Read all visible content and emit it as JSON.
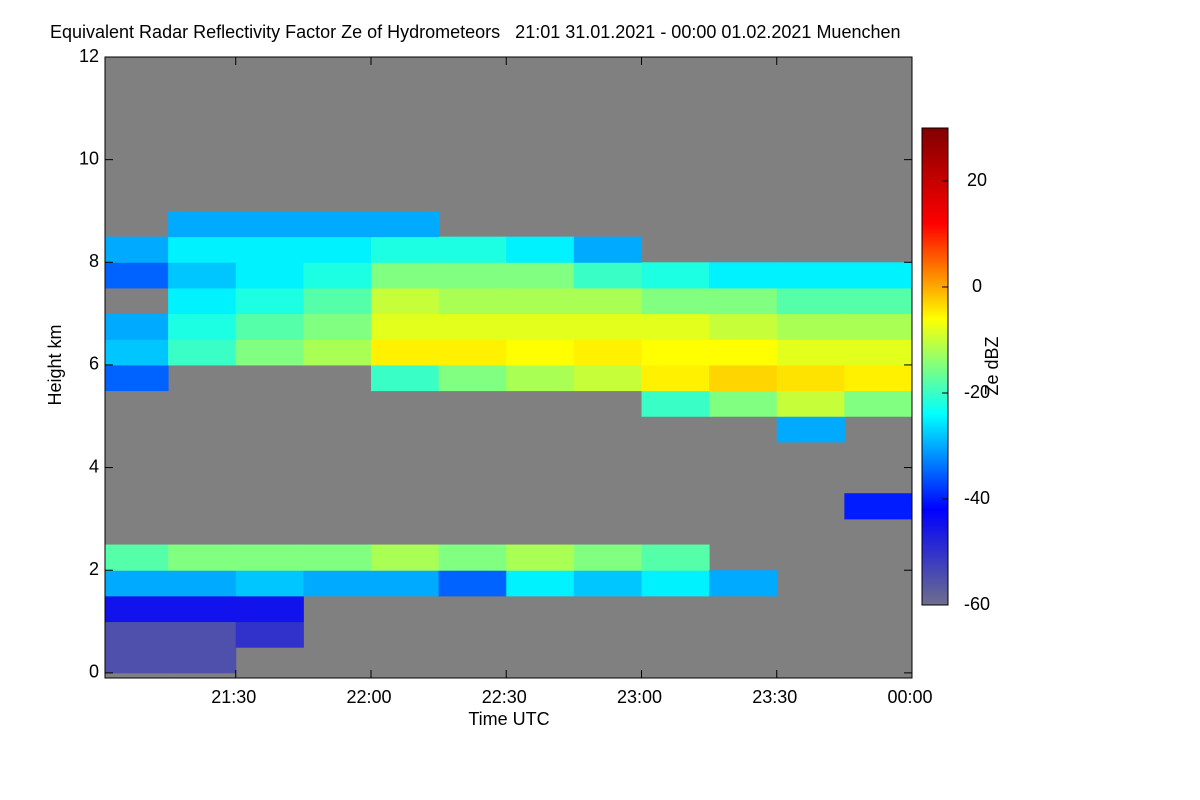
{
  "chart_data": {
    "type": "heatmap",
    "title": "Equivalent Radar Reflectivity Factor Ze of Hydrometeors   21:01 31.01.2021 - 00:00 01.02.2021 Muenchen",
    "x_label": "Time UTC",
    "y_label": "Height km",
    "colorbar_label": "Ze dBZ",
    "xlim": [
      21.0167,
      24
    ],
    "xticks": [
      {
        "value": 21.5,
        "label": "21:30"
      },
      {
        "value": 22,
        "label": "22:00"
      },
      {
        "value": 22.5,
        "label": "22:30"
      },
      {
        "value": 23,
        "label": "23:00"
      },
      {
        "value": 23.5,
        "label": "23:30"
      },
      {
        "value": 24,
        "label": "00:00"
      }
    ],
    "ylim": [
      -0.1,
      12
    ],
    "yticks": [
      0,
      2,
      4,
      6,
      8,
      10,
      12
    ],
    "zlim": [
      -60,
      30
    ],
    "zticks": [
      -60,
      -40,
      -20,
      0,
      20
    ],
    "colormap": [
      "#6e6e8c",
      "#0000ff",
      "#00ffff",
      "#ffff00",
      "#ff0000",
      "#800000"
    ],
    "nodata_color": "#808080",
    "x_bins": [
      21.0167,
      21.25,
      21.5,
      21.75,
      22,
      22.25,
      22.5,
      22.75,
      23,
      23.25,
      23.5,
      23.75,
      24
    ],
    "y_bins": [
      0,
      0.5,
      1,
      1.5,
      2,
      2.5,
      3,
      3.5,
      4,
      4.5,
      5,
      5.5,
      6,
      6.5,
      7,
      7.5,
      8,
      8.5,
      9,
      9.5,
      10,
      10.5,
      11,
      11.5,
      12
    ],
    "z": [
      [
        -55,
        -55,
        -45,
        -30,
        -18,
        null,
        null,
        null,
        null,
        null,
        null,
        -35,
        -28,
        -30,
        null,
        -35,
        -30,
        null,
        null,
        null,
        null,
        null,
        null,
        null
      ],
      [
        -55,
        -55,
        -45,
        -30,
        -15,
        null,
        null,
        null,
        null,
        null,
        null,
        null,
        -20,
        -22,
        -25,
        -28,
        -25,
        -30,
        null,
        null,
        null,
        null,
        null,
        null
      ],
      [
        null,
        -50,
        -45,
        -28,
        -15,
        null,
        null,
        null,
        null,
        null,
        null,
        null,
        -15,
        -18,
        -22,
        -25,
        -25,
        -30,
        null,
        null,
        null,
        null,
        null,
        null
      ],
      [
        null,
        null,
        null,
        -30,
        -15,
        null,
        null,
        null,
        null,
        null,
        null,
        null,
        -12,
        -15,
        -18,
        -22,
        -25,
        -30,
        null,
        null,
        null,
        null,
        null,
        null
      ],
      [
        null,
        null,
        null,
        -30,
        -12,
        null,
        null,
        null,
        null,
        null,
        null,
        -20,
        -5,
        -8,
        -10,
        -15,
        -22,
        -30,
        null,
        null,
        null,
        null,
        null,
        null
      ],
      [
        null,
        null,
        null,
        -35,
        -15,
        null,
        null,
        null,
        null,
        null,
        null,
        -15,
        -5,
        -8,
        -12,
        -15,
        -22,
        null,
        null,
        null,
        null,
        null,
        null,
        null
      ],
      [
        null,
        null,
        null,
        -25,
        -12,
        null,
        null,
        null,
        null,
        null,
        null,
        -12,
        -6,
        -8,
        -12,
        -15,
        -25,
        null,
        null,
        null,
        null,
        null,
        null,
        null
      ],
      [
        null,
        null,
        null,
        -28,
        -15,
        null,
        null,
        null,
        null,
        null,
        null,
        -10,
        -5,
        -8,
        -12,
        -20,
        -30,
        null,
        null,
        null,
        null,
        null,
        null,
        null
      ],
      [
        null,
        null,
        null,
        -25,
        -18,
        null,
        null,
        null,
        null,
        null,
        -20,
        -5,
        -6,
        -8,
        -15,
        -22,
        null,
        null,
        null,
        null,
        null,
        null,
        null,
        null
      ],
      [
        null,
        null,
        null,
        -30,
        null,
        null,
        null,
        null,
        null,
        null,
        -15,
        -3,
        -6,
        -10,
        -15,
        -25,
        null,
        null,
        null,
        null,
        null,
        null,
        null,
        null
      ],
      [
        null,
        null,
        null,
        null,
        null,
        null,
        null,
        null,
        null,
        -30,
        -10,
        -4,
        -8,
        -12,
        -18,
        -25,
        null,
        null,
        null,
        null,
        null,
        null,
        null,
        null
      ],
      [
        null,
        null,
        null,
        null,
        null,
        null,
        -40,
        null,
        null,
        null,
        -15,
        -5,
        -8,
        -12,
        -18,
        -25,
        null,
        null,
        null,
        null,
        null,
        null,
        null,
        null
      ]
    ]
  }
}
